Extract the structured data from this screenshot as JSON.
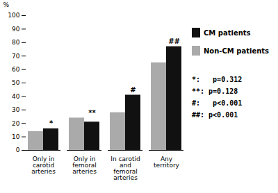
{
  "chart_data": {
    "type": "bar",
    "categories": [
      "Only in\ncarotid\narteries",
      "Only in\nfemoral\narteries",
      "In carotid\nand\nfemoral\narteries",
      "Any\nterritory"
    ],
    "series": [
      {
        "name": "Non-CM patients",
        "color": "#aaaaaa",
        "values": [
          14,
          24,
          28,
          65
        ]
      },
      {
        "name": "CM patients",
        "color": "#111111",
        "values": [
          16,
          21,
          41,
          77
        ]
      }
    ],
    "ylabel": "%",
    "ylim": [
      0,
      100
    ],
    "yticks": [
      0,
      10,
      20,
      30,
      40,
      50,
      60,
      70,
      80,
      90,
      100
    ],
    "annotations": [
      "*",
      "**",
      "#",
      "##"
    ],
    "notes": [
      "*:   p=0.312",
      "**: p=0.128",
      "#:   p<0.001",
      "##: p<0.001"
    ],
    "grid": false,
    "legend": "right"
  }
}
